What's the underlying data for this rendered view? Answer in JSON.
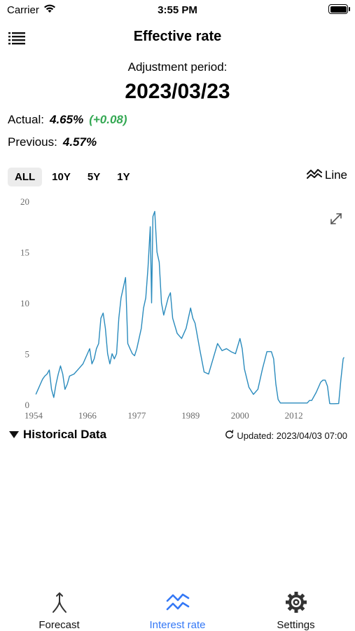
{
  "status_bar": {
    "carrier": "Carrier",
    "time": "3:55 PM"
  },
  "header": {
    "title": "Effective rate",
    "menu_icon": "list-icon"
  },
  "adjustment": {
    "label": "Adjustment period:",
    "date": "2023/03/23"
  },
  "rates": {
    "actual_label": "Actual:",
    "actual_value": "4.65%",
    "actual_change": "(+0.08)",
    "previous_label": "Previous:",
    "previous_value": "4.57%"
  },
  "range_tabs": [
    {
      "label": "ALL",
      "active": true
    },
    {
      "label": "10Y",
      "active": false
    },
    {
      "label": "5Y",
      "active": false
    },
    {
      "label": "1Y",
      "active": false
    }
  ],
  "chart_mode": {
    "label": "Line",
    "icon": "line-chart-icon"
  },
  "historical": {
    "label": "Historical Data",
    "icon": "triangle-down-icon"
  },
  "updated": {
    "label": "Updated: 2023/04/03 07:00",
    "icon": "refresh-icon"
  },
  "tabs": [
    {
      "label": "Forecast",
      "icon": "fork-icon",
      "active": false
    },
    {
      "label": "Interest rate",
      "icon": "line-chart-icon",
      "active": true
    },
    {
      "label": "Settings",
      "icon": "gear-icon",
      "active": false
    }
  ],
  "colors": {
    "line": "#2a8bbd",
    "accent": "#3478f6",
    "positive": "#34a853"
  },
  "chart_data": {
    "type": "line",
    "title": "",
    "xlabel": "",
    "ylabel": "",
    "xlim": [
      1954,
      2023.3
    ],
    "ylim": [
      0,
      20
    ],
    "x_ticks": [
      1954,
      1966,
      1977,
      1989,
      2000,
      2012
    ],
    "y_ticks": [
      0,
      5,
      10,
      15,
      20
    ],
    "grid": false,
    "series": [
      {
        "x": [
          1954.5,
          1955,
          1955.5,
          1956,
          1956.5,
          1957,
          1957.5,
          1958,
          1958.5,
          1959,
          1959.5,
          1960,
          1960.5,
          1961,
          1961.5,
          1962,
          1963,
          1964,
          1965,
          1966,
          1966.5,
          1967,
          1967.5,
          1968,
          1968.5,
          1969,
          1969.5,
          1970,
          1970.5,
          1971,
          1971.5,
          1972,
          1972.5,
          1973,
          1973.5,
          1974,
          1974.5,
          1975,
          1975.5,
          1976,
          1976.5,
          1977,
          1977.5,
          1978,
          1978.5,
          1979,
          1979.5,
          1980,
          1980.3,
          1980.6,
          1981,
          1981.5,
          1982,
          1982.5,
          1983,
          1984,
          1984.5,
          1985,
          1986,
          1987,
          1988,
          1989,
          1989.5,
          1990,
          1991,
          1992,
          1993,
          1994,
          1995,
          1996,
          1997,
          1998,
          1999,
          2000,
          2000.5,
          2001,
          2002,
          2003,
          2004,
          2005,
          2006,
          2007,
          2007.5,
          2008,
          2008.5,
          2009,
          2012,
          2015,
          2015.5,
          2016,
          2017,
          2018,
          2018.5,
          2019,
          2019.5,
          2020,
          2020.3,
          2021,
          2022,
          2022.5,
          2023,
          2023.2
        ],
        "y": [
          1.0,
          1.5,
          2.0,
          2.5,
          2.8,
          3.0,
          3.4,
          1.5,
          0.7,
          2.0,
          3.0,
          3.8,
          3.0,
          1.5,
          2.0,
          2.8,
          3.0,
          3.5,
          4.0,
          5.0,
          5.5,
          4.0,
          4.5,
          5.5,
          6.0,
          8.5,
          9.0,
          7.5,
          5.0,
          4.0,
          5.0,
          4.5,
          5.0,
          8.5,
          10.5,
          11.5,
          12.5,
          6.0,
          5.5,
          5.0,
          4.8,
          5.5,
          6.5,
          7.5,
          9.5,
          10.5,
          13.5,
          17.5,
          10.0,
          18.5,
          19.0,
          15.0,
          14.0,
          10.0,
          8.8,
          10.5,
          11.0,
          8.5,
          7.0,
          6.5,
          7.5,
          9.5,
          8.5,
          8.0,
          5.5,
          3.2,
          3.0,
          4.5,
          6.0,
          5.3,
          5.5,
          5.2,
          5.0,
          6.5,
          5.5,
          3.5,
          1.7,
          1.0,
          1.5,
          3.5,
          5.2,
          5.2,
          4.5,
          2.0,
          0.5,
          0.15,
          0.15,
          0.15,
          0.4,
          0.4,
          1.2,
          2.2,
          2.4,
          2.4,
          1.8,
          0.1,
          0.08,
          0.08,
          0.1,
          2.5,
          4.5,
          4.65
        ]
      }
    ]
  }
}
